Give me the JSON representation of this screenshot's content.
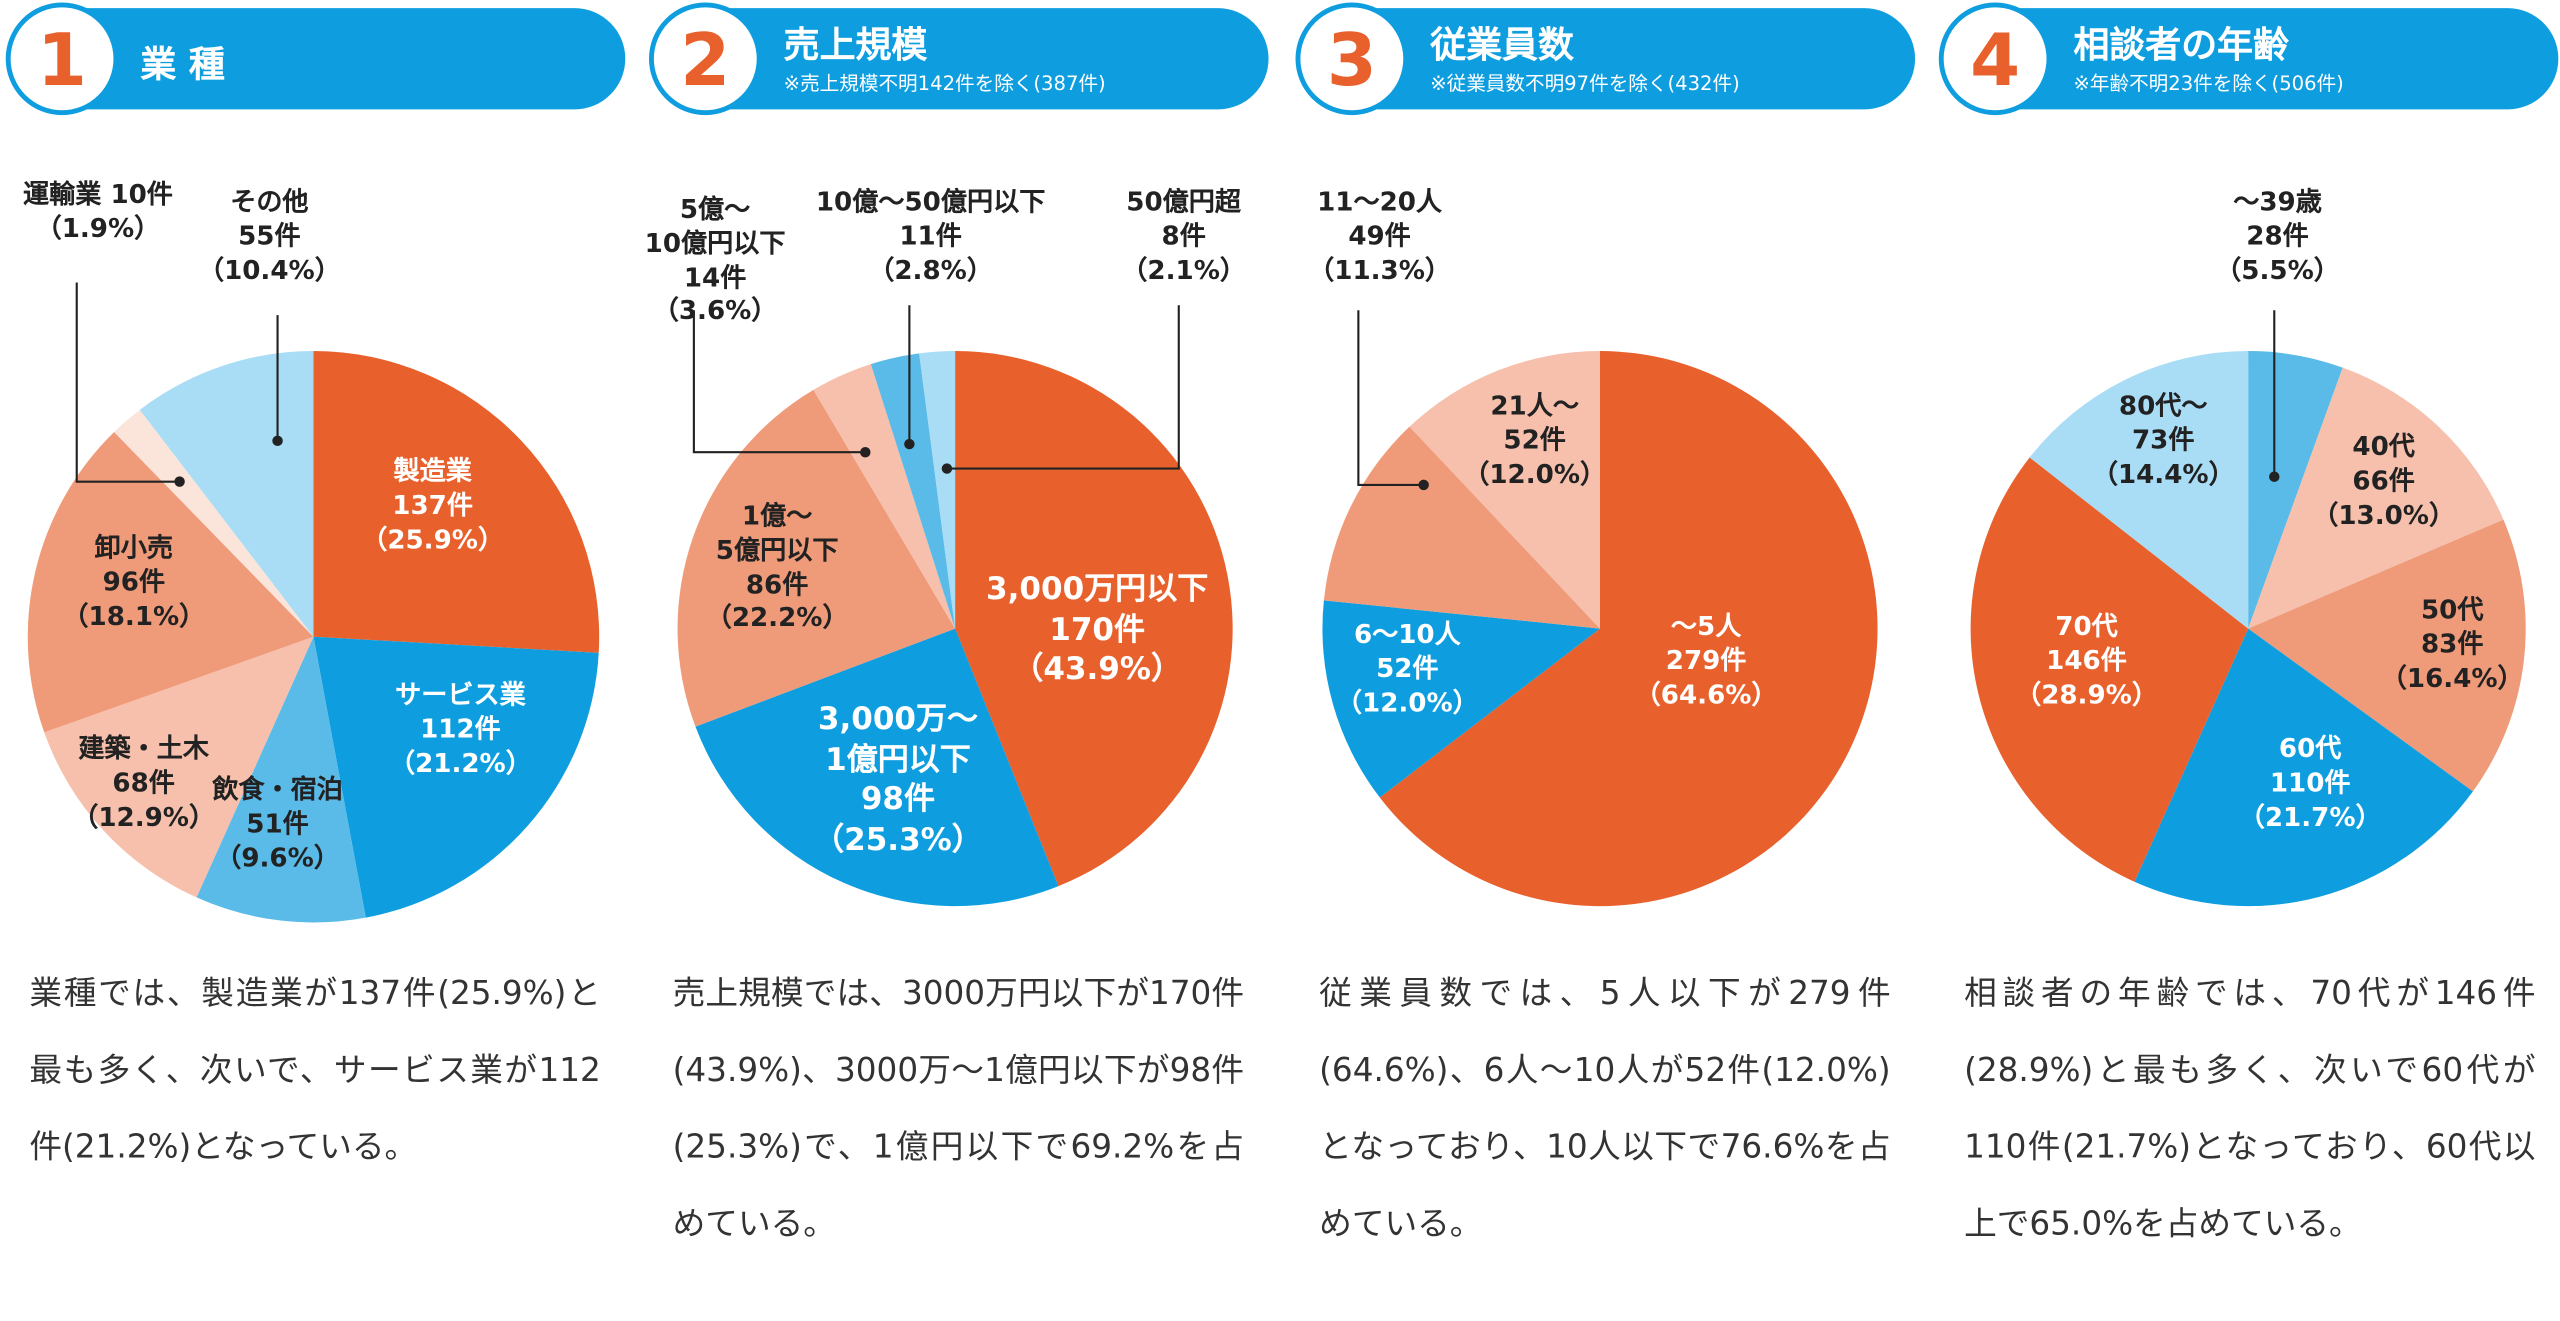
{
  "chart_data": [
    {
      "type": "pie",
      "number": 1,
      "title": "業 種",
      "categories": [
        "製造業",
        "サービス業",
        "飲食・宿泊",
        "建築・土木",
        "卸小売",
        "運輸業",
        "その他"
      ],
      "values": [
        137,
        112,
        51,
        68,
        96,
        10,
        55
      ],
      "value_labels": [
        "137件",
        "112件",
        "51件",
        "68件",
        "96件",
        "10件",
        "55件"
      ],
      "percentages": [
        25.9,
        21.2,
        9.6,
        12.9,
        18.1,
        1.9,
        10.4
      ],
      "percentage_labels": [
        "（25.9%）",
        "（21.2%）",
        "（9.6%）",
        "（12.9%）",
        "（18.1%）",
        "（1.9%）",
        "（10.4%）"
      ],
      "colors": [
        "#e8602c",
        "#0e9ee0",
        "#5bbbe8",
        "#f6c0ad",
        "#ef9b7a",
        "#fbe4da",
        "#a9dcf5"
      ],
      "description": "業種では、製造業が137件(25.9%)と最も多く、次いで、サービス業が112件(21.2%)となっている。"
    },
    {
      "type": "pie",
      "number": 2,
      "title": "売上規模",
      "subtitle": "※売上規模不明142件を除く(387件)",
      "categories": [
        "3,000万円以下",
        "3,000万～\n1億円以下",
        "1億～\n5億円以下",
        "5億～\n10億円以下",
        "10億～50億円以下",
        "50億円超"
      ],
      "values": [
        170,
        98,
        86,
        14,
        11,
        8
      ],
      "value_labels": [
        "170件",
        "98件",
        "86件",
        "14件",
        "11件",
        "8件"
      ],
      "percentages": [
        43.9,
        25.3,
        22.2,
        3.6,
        2.8,
        2.1
      ],
      "percentage_labels": [
        "（43.9%）",
        "（25.3%）",
        "（22.2%）",
        "（3.6%）",
        "（2.8%）",
        "（2.1%）"
      ],
      "colors": [
        "#e8602c",
        "#0e9ee0",
        "#ef9b7a",
        "#f6c0ad",
        "#5bbbe8",
        "#a9dcf5"
      ],
      "description": "売上規模では、3000万円以下が170件(43.9%)、3000万～1億円以下が98件(25.3%)で、1億円以下で69.2%を占めている。"
    },
    {
      "type": "pie",
      "number": 3,
      "title": "従業員数",
      "subtitle": "※従業員数不明97件を除く(432件)",
      "categories": [
        "～5人",
        "6～10人",
        "11～20人",
        "21人～"
      ],
      "values": [
        279,
        52,
        49,
        52
      ],
      "value_labels": [
        "279件",
        "52件",
        "49件",
        "52件"
      ],
      "percentages": [
        64.6,
        12.0,
        11.3,
        12.0
      ],
      "percentage_labels": [
        "（64.6%）",
        "（12.0%）",
        "（11.3%）",
        "（12.0%）"
      ],
      "colors": [
        "#e8602c",
        "#0e9ee0",
        "#ef9b7a",
        "#f6c0ad"
      ],
      "description": "従業員数では、5人以下が279件(64.6%)、6人～10人が52件(12.0%)となっており、10人以下で76.6%を占めている。"
    },
    {
      "type": "pie",
      "number": 4,
      "title": "相談者の年齢",
      "subtitle": "※年齢不明23件を除く(506件)",
      "categories": [
        "～39歳",
        "40代",
        "50代",
        "60代",
        "70代",
        "80代～"
      ],
      "values": [
        28,
        66,
        83,
        110,
        146,
        73
      ],
      "value_labels": [
        "28件",
        "66件",
        "83件",
        "110件",
        "146件",
        "73件"
      ],
      "percentages": [
        5.5,
        13.0,
        16.4,
        21.7,
        28.9,
        14.4
      ],
      "percentage_labels": [
        "（5.5%）",
        "（13.0%）",
        "（16.4%）",
        "（21.7%）",
        "（28.9%）",
        "（14.4%）"
      ],
      "colors": [
        "#5bbbe8",
        "#f6c0ad",
        "#ef9b7a",
        "#0e9ee0",
        "#e8602c",
        "#a9dcf5"
      ],
      "description": "相談者の年齢では、70代が146件(28.9%)と最も多く、次いで60代が110件(21.7%)となっており、60代以上で65.0%を占めている。"
    }
  ]
}
